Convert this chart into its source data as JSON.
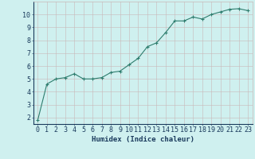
{
  "xlabel": "Humidex (Indice chaleur)",
  "x": [
    0,
    1,
    2,
    3,
    4,
    5,
    6,
    7,
    8,
    9,
    10,
    11,
    12,
    13,
    14,
    15,
    16,
    17,
    18,
    19,
    20,
    21,
    22,
    23
  ],
  "y": [
    1.8,
    4.6,
    5.0,
    5.1,
    5.4,
    5.0,
    5.0,
    5.1,
    5.5,
    5.6,
    6.1,
    6.6,
    7.5,
    7.8,
    8.6,
    9.5,
    9.5,
    9.8,
    9.65,
    10.0,
    10.2,
    10.4,
    10.45,
    10.3
  ],
  "line_color": "#2e7d6e",
  "marker": "+",
  "marker_size": 3,
  "marker_lw": 0.8,
  "line_width": 0.8,
  "bg_color": "#cff0ef",
  "grid_color": "#c8b8b8",
  "tick_color": "#1a3a5c",
  "label_color": "#1a3a5c",
  "ylim": [
    1.5,
    11.0
  ],
  "xlim": [
    -0.5,
    23.5
  ],
  "yticks": [
    2,
    3,
    4,
    5,
    6,
    7,
    8,
    9,
    10
  ],
  "xticks": [
    0,
    1,
    2,
    3,
    4,
    5,
    6,
    7,
    8,
    9,
    10,
    11,
    12,
    13,
    14,
    15,
    16,
    17,
    18,
    19,
    20,
    21,
    22,
    23
  ],
  "xlabel_fontsize": 6.5,
  "tick_fontsize": 6.0
}
